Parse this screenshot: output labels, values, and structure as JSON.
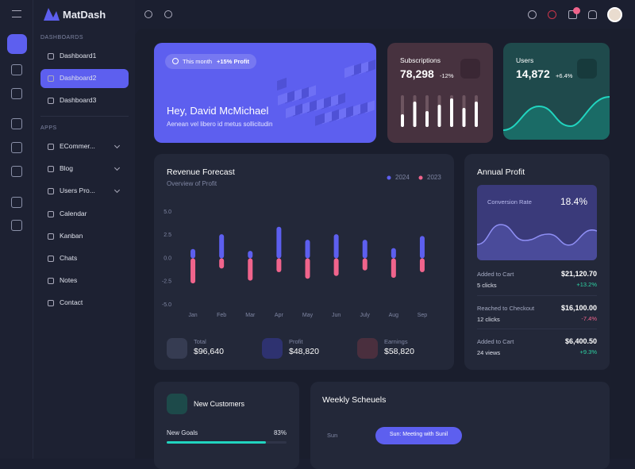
{
  "brand": "MatDash",
  "sidebar": {
    "sections": [
      {
        "title": "DASHBOARDS",
        "items": [
          "Dashboard1",
          "Dashboard2",
          "Dashboard3"
        ]
      },
      {
        "title": "APPS",
        "items": [
          "ECommer...",
          "Blog",
          "Users Pro...",
          "Calendar",
          "Kanban",
          "Chats",
          "Notes",
          "Contact"
        ]
      }
    ]
  },
  "welcome": {
    "badge": {
      "label": "This month",
      "value": "+15% Profit"
    },
    "title": "Hey, David McMichael",
    "subtitle": "Aenean vel libero id metus sollicitudin"
  },
  "stats_cards": [
    {
      "title": "Subscriptions",
      "value": "78,298",
      "change": "-12%"
    },
    {
      "title": "Users",
      "value": "14,872",
      "change": "+6.4%"
    }
  ],
  "chart_data": {
    "type": "bar",
    "title": "Revenue Forecast",
    "subtitle": "Overview of Profit",
    "categories": [
      "Jan",
      "Feb",
      "Mar",
      "Apr",
      "May",
      "Jun",
      "July",
      "Aug",
      "Sep"
    ],
    "series": [
      {
        "name": "2024",
        "color": "#5d5fef",
        "values": [
          1.0,
          2.6,
          0.8,
          3.4,
          2.0,
          2.6,
          2.0,
          1.1,
          2.4
        ]
      },
      {
        "name": "2023",
        "color": "#f0648c",
        "values": [
          -2.7,
          -1.1,
          -2.4,
          -1.5,
          -2.2,
          -1.9,
          -1.3,
          -2.1,
          -1.5
        ]
      }
    ],
    "ylim": [
      -5,
      5
    ],
    "yticks": [
      {
        "value": 5,
        "label": "5.0"
      },
      2.5,
      {
        "value": 0,
        "label": "0.0"
      },
      -2.5,
      {
        "value": -5,
        "label": "-5.0"
      }
    ],
    "grid": false
  },
  "revenue_totals": [
    {
      "label": "Total",
      "value": "$96,640"
    },
    {
      "label": "Profit",
      "value": "$48,820"
    },
    {
      "label": "Earnings",
      "value": "$58,820"
    }
  ],
  "annual_profit": {
    "title": "Annual Profit",
    "conversion": {
      "label": "Conversion Rate",
      "value": "18.4%"
    },
    "rows": [
      {
        "label": "Added to Cart",
        "detail": "5 clicks",
        "amount": "$21,120.70",
        "change": "+13.2%"
      },
      {
        "label": "Reached to Checkout",
        "detail": "12 clicks",
        "amount": "$16,100.00",
        "change": "-7.4%"
      },
      {
        "label": "Added to Cart",
        "detail": "24 views",
        "amount": "$6,400.50",
        "change": "+9.3%"
      }
    ]
  },
  "new_customers": {
    "title": "New Customers",
    "goal": {
      "label": "New Goals",
      "values": [
        83
      ],
      "value_labels": [
        "83%"
      ]
    }
  },
  "weekly_schedules": {
    "title": "Weekly Scheuels",
    "day": "Sun",
    "event": "Sun: Meeting with Sunil"
  }
}
